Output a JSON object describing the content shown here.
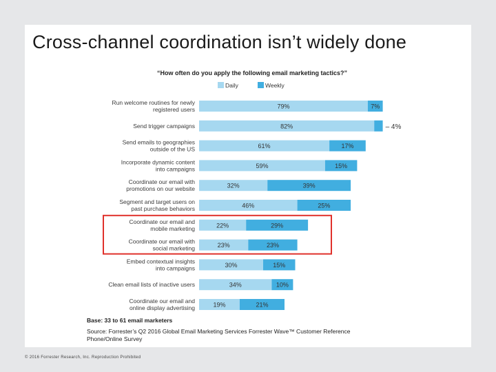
{
  "slide": {
    "title": "Cross-channel coordination isn’t widely done",
    "footer": "© 2016 Forrester Research, Inc. Reproduction Prohibited"
  },
  "chart_data": {
    "type": "bar",
    "stacked": true,
    "orientation": "horizontal",
    "title": "“How often do you apply the following email marketing tactics?”",
    "categories": [
      [
        "Run welcome routines for newly",
        "registered users"
      ],
      [
        "Send trigger campaigns"
      ],
      [
        "Send emails to geographies",
        "outside of the US"
      ],
      [
        "Incorporate dynamic content",
        "into campaigns"
      ],
      [
        "Coordinate our email with",
        "promotions on our website"
      ],
      [
        "Segment and target users on",
        "past purchase behaviors"
      ],
      [
        "Coordinate our email and",
        "mobile marketing"
      ],
      [
        "Coordinate our email with",
        "social marketing"
      ],
      [
        "Embed contextual insights",
        "into campaigns"
      ],
      [
        "Clean email lists of inactive users"
      ],
      [
        "Coordinate our email and",
        "online display advertising"
      ]
    ],
    "series": [
      {
        "name": "Daily",
        "values": [
          79,
          82,
          61,
          59,
          32,
          46,
          22,
          23,
          30,
          34,
          19
        ],
        "labels": [
          "79%",
          "82%",
          "61%",
          "59%",
          "32%",
          "46%",
          "22%",
          "23%",
          "30%",
          "34%",
          "19%"
        ]
      },
      {
        "name": "Weekly",
        "values": [
          7,
          4,
          17,
          15,
          39,
          25,
          29,
          23,
          15,
          10,
          21
        ],
        "labels": [
          "7%",
          "4%",
          "17%",
          "15%",
          "39%",
          "25%",
          "29%",
          "23%",
          "15%",
          "10%",
          "21%"
        ]
      }
    ],
    "colors": {
      "Daily": "#a6d8f0",
      "Weekly": "#41aee0",
      "highlight": "#e0302a"
    },
    "outside_label": {
      "row": 1,
      "series": 1,
      "text": "– 4%"
    },
    "highlight_rows": [
      6,
      7
    ],
    "legend_position": "top",
    "grid": false,
    "notes": [
      "Base: 33 to 61 email marketers",
      "Source: Forrester’s Q2 2016 Global Email Marketing Services Forrester Wave™ Customer Reference",
      "Phone/Online Survey"
    ]
  }
}
